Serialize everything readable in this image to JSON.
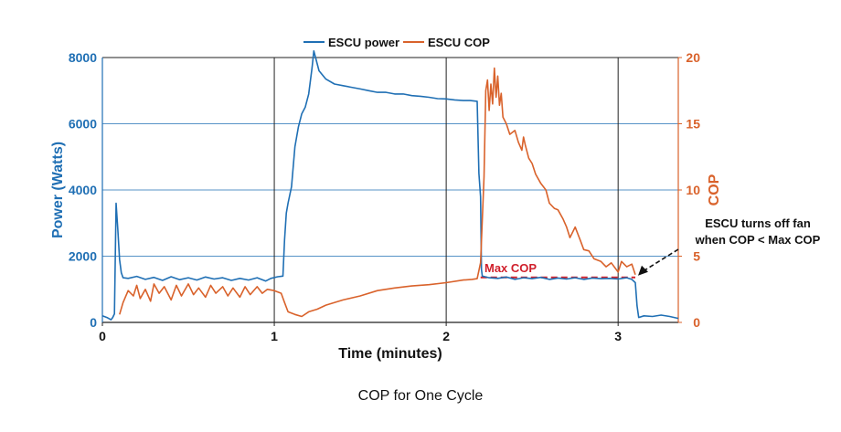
{
  "caption": "COP for One Cycle",
  "chart_data": {
    "type": "line",
    "xlabel": "Time (minutes)",
    "ylabel_left": "Power (Watts)",
    "ylabel_right": "COP",
    "xlim": [
      0,
      3.35
    ],
    "ylim_left": [
      0,
      8000
    ],
    "ylim_right": [
      0,
      20
    ],
    "x_ticks": [
      0,
      1,
      2,
      3
    ],
    "y_left_ticks": [
      0,
      2000,
      4000,
      6000,
      8000
    ],
    "y_right_ticks": [
      0,
      5,
      10,
      15,
      20
    ],
    "grid": true,
    "legend_position": "top-center",
    "colors": {
      "power": "#1f6fb4",
      "cop": "#d9622b",
      "annotation": "#d0202c",
      "axis_left": "#1f6fb4",
      "axis_right": "#d9622b"
    },
    "series": [
      {
        "name": "ESCU power",
        "axis": "left",
        "color": "#1f6fb4",
        "points": [
          [
            0.0,
            200
          ],
          [
            0.03,
            140
          ],
          [
            0.05,
            80
          ],
          [
            0.06,
            150
          ],
          [
            0.07,
            260
          ],
          [
            0.08,
            3600
          ],
          [
            0.09,
            2800
          ],
          [
            0.1,
            1900
          ],
          [
            0.11,
            1500
          ],
          [
            0.12,
            1350
          ],
          [
            0.15,
            1330
          ],
          [
            0.2,
            1390
          ],
          [
            0.25,
            1300
          ],
          [
            0.3,
            1360
          ],
          [
            0.35,
            1270
          ],
          [
            0.4,
            1380
          ],
          [
            0.45,
            1290
          ],
          [
            0.5,
            1350
          ],
          [
            0.55,
            1280
          ],
          [
            0.6,
            1370
          ],
          [
            0.65,
            1310
          ],
          [
            0.7,
            1350
          ],
          [
            0.75,
            1270
          ],
          [
            0.8,
            1330
          ],
          [
            0.85,
            1280
          ],
          [
            0.9,
            1350
          ],
          [
            0.95,
            1250
          ],
          [
            0.98,
            1330
          ],
          [
            1.02,
            1380
          ],
          [
            1.05,
            1400
          ],
          [
            1.06,
            2500
          ],
          [
            1.07,
            3300
          ],
          [
            1.08,
            3600
          ],
          [
            1.1,
            4100
          ],
          [
            1.12,
            5300
          ],
          [
            1.14,
            5900
          ],
          [
            1.16,
            6300
          ],
          [
            1.18,
            6500
          ],
          [
            1.2,
            6900
          ],
          [
            1.22,
            7700
          ],
          [
            1.23,
            8200
          ],
          [
            1.24,
            8000
          ],
          [
            1.26,
            7600
          ],
          [
            1.3,
            7350
          ],
          [
            1.35,
            7200
          ],
          [
            1.4,
            7150
          ],
          [
            1.45,
            7100
          ],
          [
            1.5,
            7050
          ],
          [
            1.55,
            7000
          ],
          [
            1.6,
            6950
          ],
          [
            1.65,
            6950
          ],
          [
            1.7,
            6900
          ],
          [
            1.75,
            6900
          ],
          [
            1.8,
            6850
          ],
          [
            1.85,
            6830
          ],
          [
            1.9,
            6800
          ],
          [
            1.95,
            6760
          ],
          [
            2.0,
            6750
          ],
          [
            2.05,
            6720
          ],
          [
            2.1,
            6700
          ],
          [
            2.14,
            6700
          ],
          [
            2.18,
            6680
          ],
          [
            2.19,
            4500
          ],
          [
            2.2,
            3800
          ],
          [
            2.205,
            1600
          ],
          [
            2.21,
            1400
          ],
          [
            2.25,
            1350
          ],
          [
            2.3,
            1330
          ],
          [
            2.35,
            1370
          ],
          [
            2.4,
            1300
          ],
          [
            2.45,
            1350
          ],
          [
            2.5,
            1320
          ],
          [
            2.55,
            1360
          ],
          [
            2.6,
            1300
          ],
          [
            2.65,
            1340
          ],
          [
            2.7,
            1310
          ],
          [
            2.75,
            1350
          ],
          [
            2.8,
            1300
          ],
          [
            2.85,
            1340
          ],
          [
            2.9,
            1320
          ],
          [
            2.95,
            1330
          ],
          [
            3.0,
            1310
          ],
          [
            3.05,
            1350
          ],
          [
            3.08,
            1300
          ],
          [
            3.1,
            1200
          ],
          [
            3.11,
            500
          ],
          [
            3.12,
            150
          ],
          [
            3.15,
            200
          ],
          [
            3.2,
            180
          ],
          [
            3.25,
            220
          ],
          [
            3.3,
            180
          ],
          [
            3.35,
            120
          ]
        ]
      },
      {
        "name": "ESCU COP",
        "axis": "right",
        "color": "#d9622b",
        "points": [
          [
            0.1,
            0.6
          ],
          [
            0.12,
            1.5
          ],
          [
            0.15,
            2.4
          ],
          [
            0.18,
            2.0
          ],
          [
            0.2,
            2.8
          ],
          [
            0.22,
            1.8
          ],
          [
            0.25,
            2.5
          ],
          [
            0.28,
            1.6
          ],
          [
            0.3,
            2.9
          ],
          [
            0.33,
            2.2
          ],
          [
            0.36,
            2.7
          ],
          [
            0.4,
            1.7
          ],
          [
            0.43,
            2.8
          ],
          [
            0.46,
            2.0
          ],
          [
            0.5,
            2.9
          ],
          [
            0.53,
            2.1
          ],
          [
            0.56,
            2.6
          ],
          [
            0.6,
            1.9
          ],
          [
            0.63,
            2.8
          ],
          [
            0.66,
            2.2
          ],
          [
            0.7,
            2.7
          ],
          [
            0.73,
            2.0
          ],
          [
            0.76,
            2.6
          ],
          [
            0.8,
            1.9
          ],
          [
            0.83,
            2.7
          ],
          [
            0.86,
            2.1
          ],
          [
            0.9,
            2.7
          ],
          [
            0.93,
            2.2
          ],
          [
            0.96,
            2.5
          ],
          [
            1.0,
            2.4
          ],
          [
            1.04,
            2.2
          ],
          [
            1.06,
            1.5
          ],
          [
            1.08,
            0.8
          ],
          [
            1.12,
            0.6
          ],
          [
            1.16,
            0.45
          ],
          [
            1.2,
            0.8
          ],
          [
            1.25,
            1.0
          ],
          [
            1.3,
            1.3
          ],
          [
            1.4,
            1.7
          ],
          [
            1.5,
            2.0
          ],
          [
            1.6,
            2.4
          ],
          [
            1.7,
            2.6
          ],
          [
            1.8,
            2.75
          ],
          [
            1.9,
            2.85
          ],
          [
            2.0,
            3.0
          ],
          [
            2.1,
            3.2
          ],
          [
            2.15,
            3.25
          ],
          [
            2.18,
            3.3
          ],
          [
            2.2,
            4.5
          ],
          [
            2.22,
            11.0
          ],
          [
            2.23,
            17.5
          ],
          [
            2.24,
            18.3
          ],
          [
            2.25,
            16.0
          ],
          [
            2.26,
            18.0
          ],
          [
            2.27,
            16.5
          ],
          [
            2.28,
            19.2
          ],
          [
            2.29,
            17.0
          ],
          [
            2.3,
            18.6
          ],
          [
            2.31,
            16.4
          ],
          [
            2.32,
            17.3
          ],
          [
            2.33,
            15.5
          ],
          [
            2.35,
            15.0
          ],
          [
            2.37,
            14.2
          ],
          [
            2.4,
            14.5
          ],
          [
            2.42,
            13.6
          ],
          [
            2.44,
            13.0
          ],
          [
            2.45,
            14.0
          ],
          [
            2.46,
            13.4
          ],
          [
            2.48,
            12.4
          ],
          [
            2.5,
            12.0
          ],
          [
            2.52,
            11.2
          ],
          [
            2.55,
            10.5
          ],
          [
            2.58,
            10.0
          ],
          [
            2.6,
            9.0
          ],
          [
            2.63,
            8.6
          ],
          [
            2.65,
            8.5
          ],
          [
            2.68,
            7.8
          ],
          [
            2.7,
            7.2
          ],
          [
            2.72,
            6.4
          ],
          [
            2.75,
            7.2
          ],
          [
            2.78,
            6.2
          ],
          [
            2.8,
            5.5
          ],
          [
            2.83,
            5.4
          ],
          [
            2.86,
            4.8
          ],
          [
            2.9,
            4.6
          ],
          [
            2.93,
            4.2
          ],
          [
            2.96,
            4.5
          ],
          [
            3.0,
            3.8
          ],
          [
            3.02,
            4.6
          ],
          [
            3.05,
            4.2
          ],
          [
            3.08,
            4.4
          ],
          [
            3.1,
            3.6
          ]
        ]
      }
    ],
    "reference_line": {
      "label": "Max COP",
      "y": 3.4,
      "x_start": 2.2,
      "x_end": 3.1,
      "axis": "right"
    },
    "annotation": {
      "lines": [
        "ESCU turns off fan",
        "when COP < Max COP"
      ],
      "arrow_to": [
        3.1,
        3.4
      ]
    }
  }
}
